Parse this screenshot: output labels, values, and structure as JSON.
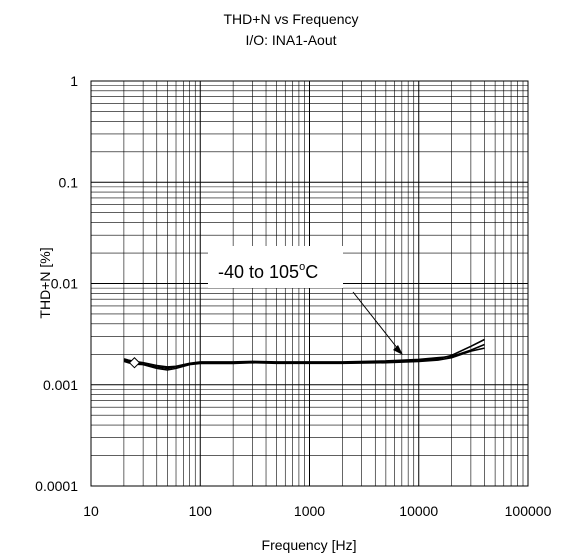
{
  "chart_data": {
    "type": "line",
    "title": "THD+N vs Frequency",
    "subtitle": "I/O: INA1-Aout",
    "xlabel": "Frequency [Hz]",
    "ylabel": "THD+N [%]",
    "xscale": "log",
    "yscale": "log",
    "xlim": [
      10,
      100000
    ],
    "ylim": [
      0.0001,
      1
    ],
    "x_ticks": [
      "10",
      "100",
      "1000",
      "10000",
      "100000"
    ],
    "y_ticks": [
      "1",
      "0.1",
      "0.01",
      "0.001",
      "0.0001"
    ],
    "grid": true,
    "annotation": {
      "text": "-40 to 105",
      "superscript": "o",
      "suffix": "C",
      "points_to": [
        7500,
        0.0017
      ]
    },
    "series": [
      {
        "x": [
          20,
          22,
          25,
          30,
          40,
          50,
          60,
          80,
          100,
          200,
          300,
          500,
          1000,
          2000,
          5000,
          10000,
          15000,
          20000,
          30000,
          40000
        ],
        "values": [
          0.00175,
          0.0017,
          0.00165,
          0.0016,
          0.0015,
          0.00145,
          0.0015,
          0.0016,
          0.00165,
          0.00165,
          0.00165,
          0.00165,
          0.00165,
          0.00165,
          0.0017,
          0.00175,
          0.0018,
          0.00195,
          0.0024,
          0.0028
        ]
      },
      {
        "x": [
          20,
          22,
          25,
          30,
          40,
          50,
          60,
          80,
          100,
          200,
          300,
          500,
          1000,
          2000,
          5000,
          10000,
          15000,
          20000,
          30000,
          40000
        ],
        "values": [
          0.0017,
          0.00165,
          0.0016,
          0.00158,
          0.00145,
          0.0014,
          0.00145,
          0.00158,
          0.00162,
          0.00162,
          0.00165,
          0.00163,
          0.00163,
          0.00163,
          0.00165,
          0.0017,
          0.00175,
          0.00185,
          0.00215,
          0.0023
        ]
      },
      {
        "x": [
          20,
          22,
          25,
          30,
          40,
          50,
          60,
          80,
          100,
          200,
          300,
          500,
          1000,
          2000,
          5000,
          10000,
          15000,
          20000,
          30000,
          40000
        ],
        "values": [
          0.0018,
          0.00175,
          0.0017,
          0.00165,
          0.00155,
          0.0015,
          0.00152,
          0.00163,
          0.00168,
          0.00168,
          0.0017,
          0.00168,
          0.00168,
          0.00168,
          0.00172,
          0.00178,
          0.00185,
          0.0019,
          0.0022,
          0.0025
        ]
      }
    ]
  }
}
